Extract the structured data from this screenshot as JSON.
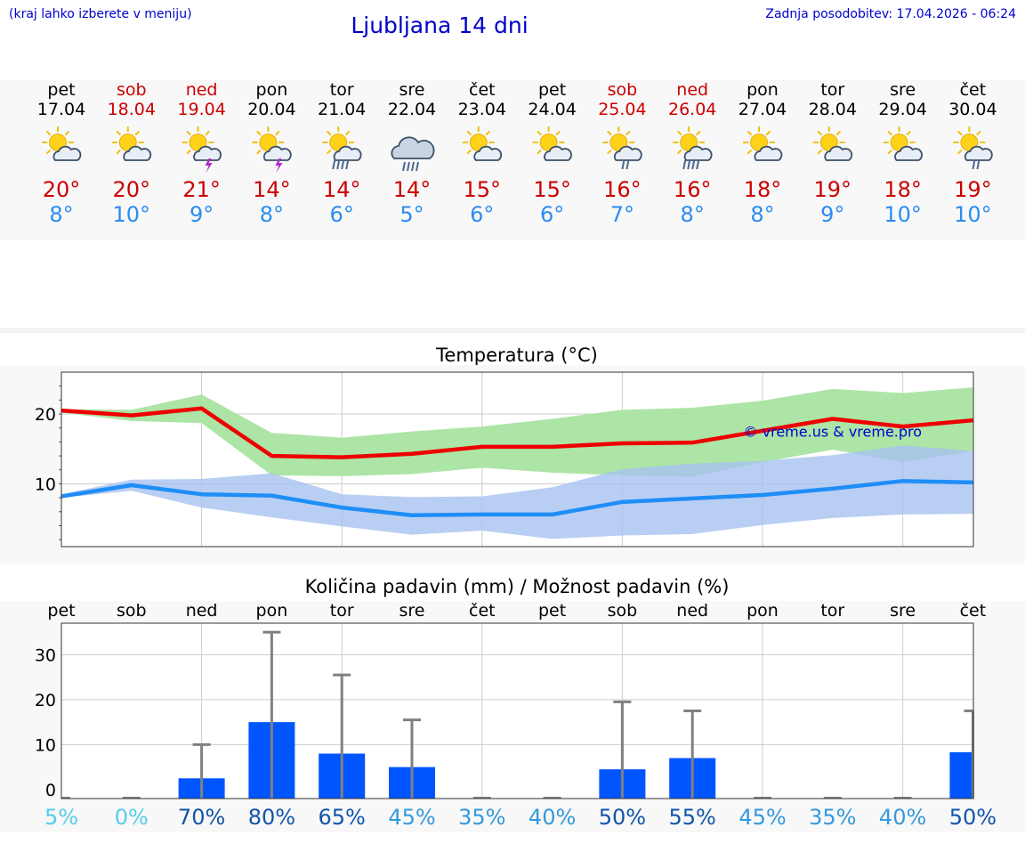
{
  "header": {
    "hint": "(kraj lahko izberete v meniju)",
    "title": "Ljubljana 14 dni",
    "updated": "Zadnja posodobitev: 17.04.2026 - 06:24"
  },
  "colors": {
    "weekday": "#000000",
    "weekend": "#cc0000",
    "tmax": "#cc0000",
    "tmin": "#2a8cf0",
    "tmax_line": "#ee0000",
    "tmin_line": "#1e8ef7",
    "tmax_band": "#a8e4a0",
    "tmin_band": "#a8c2f0",
    "precip_bar": "#0055ff",
    "error_bar": "#808080",
    "watermark": "#0000cc"
  },
  "days": [
    {
      "day": "pet",
      "date": "17.04",
      "weekend": false,
      "icon": "sun-cloud-icon",
      "tmax": "20°",
      "tmin": "8°"
    },
    {
      "day": "sob",
      "date": "18.04",
      "weekend": true,
      "icon": "sun-cloud-icon",
      "tmax": "20°",
      "tmin": "10°"
    },
    {
      "day": "ned",
      "date": "19.04",
      "weekend": true,
      "icon": "sun-cloud-thunder-icon",
      "tmax": "21°",
      "tmin": "9°"
    },
    {
      "day": "pon",
      "date": "20.04",
      "weekend": false,
      "icon": "sun-cloud-thunder-icon",
      "tmax": "14°",
      "tmin": "8°"
    },
    {
      "day": "tor",
      "date": "21.04",
      "weekend": false,
      "icon": "sun-cloud-heavy-rain-icon",
      "tmax": "14°",
      "tmin": "6°"
    },
    {
      "day": "sre",
      "date": "22.04",
      "weekend": false,
      "icon": "cloud-rain-icon",
      "tmax": "14°",
      "tmin": "5°"
    },
    {
      "day": "čet",
      "date": "23.04",
      "weekend": false,
      "icon": "sun-cloud-icon",
      "tmax": "15°",
      "tmin": "6°"
    },
    {
      "day": "pet",
      "date": "24.04",
      "weekend": false,
      "icon": "sun-cloud-icon",
      "tmax": "15°",
      "tmin": "6°"
    },
    {
      "day": "sob",
      "date": "25.04",
      "weekend": true,
      "icon": "sun-cloud-rain-icon",
      "tmax": "16°",
      "tmin": "7°"
    },
    {
      "day": "ned",
      "date": "26.04",
      "weekend": true,
      "icon": "sun-cloud-heavy-rain-icon",
      "tmax": "16°",
      "tmin": "8°"
    },
    {
      "day": "pon",
      "date": "27.04",
      "weekend": false,
      "icon": "sun-cloud-icon",
      "tmax": "18°",
      "tmin": "8°"
    },
    {
      "day": "tor",
      "date": "28.04",
      "weekend": false,
      "icon": "sun-cloud-icon",
      "tmax": "19°",
      "tmin": "9°"
    },
    {
      "day": "sre",
      "date": "29.04",
      "weekend": false,
      "icon": "sun-cloud-icon",
      "tmax": "18°",
      "tmin": "10°"
    },
    {
      "day": "čet",
      "date": "30.04",
      "weekend": false,
      "icon": "sun-cloud-rain-icon",
      "tmax": "19°",
      "tmin": "10°"
    }
  ],
  "chart_data": [
    {
      "type": "line",
      "title": "Temperatura (°C)",
      "watermark": "© vreme.us & vreme.pro",
      "categories": [
        "17.04",
        "18.04",
        "19.04",
        "20.04",
        "21.04",
        "22.04",
        "23.04",
        "24.04",
        "25.04",
        "26.04",
        "27.04",
        "28.04",
        "29.04",
        "30.04"
      ],
      "ylim": [
        1,
        26
      ],
      "yticks": [
        10,
        20
      ],
      "series": [
        {
          "name": "tmax",
          "values": [
            20.5,
            19.8,
            20.8,
            14.0,
            13.8,
            14.3,
            15.3,
            15.3,
            15.8,
            15.9,
            17.6,
            19.3,
            18.2,
            19.1
          ],
          "band_low": [
            20.2,
            19.0,
            18.7,
            11.2,
            11.1,
            11.4,
            12.3,
            11.6,
            11.2,
            11.0,
            13.1,
            14.9,
            13.1,
            14.7
          ],
          "band_high": [
            20.7,
            20.6,
            22.8,
            17.3,
            16.6,
            17.5,
            18.2,
            19.3,
            20.6,
            20.9,
            21.9,
            23.6,
            23.0,
            23.8
          ]
        },
        {
          "name": "tmin",
          "values": [
            8.2,
            9.8,
            8.5,
            8.3,
            6.6,
            5.5,
            5.6,
            5.6,
            7.4,
            7.9,
            8.4,
            9.3,
            10.4,
            10.2
          ],
          "band_low": [
            8.0,
            9.0,
            6.6,
            5.2,
            3.9,
            2.7,
            3.3,
            2.1,
            2.6,
            2.8,
            4.1,
            5.1,
            5.6,
            5.7
          ],
          "band_high": [
            8.5,
            10.6,
            10.7,
            11.5,
            8.5,
            8.1,
            8.2,
            9.5,
            12.1,
            12.9,
            13.3,
            14.1,
            15.5,
            14.7
          ]
        }
      ]
    },
    {
      "type": "bar",
      "title": "Količina padavin (mm) / Možnost padavin (%)",
      "categories": [
        "pet",
        "sob",
        "ned",
        "pon",
        "tor",
        "sre",
        "čet",
        "pet",
        "sob",
        "ned",
        "pon",
        "tor",
        "sre",
        "čet"
      ],
      "ylim": [
        -2,
        37
      ],
      "yticks": [
        0,
        10,
        20,
        30
      ],
      "values": [
        0,
        0,
        2.5,
        15,
        8,
        5,
        0,
        0,
        4.5,
        7,
        0,
        0,
        0,
        8.3
      ],
      "error_high": [
        0,
        0,
        10,
        35,
        25.5,
        15.5,
        0,
        0,
        19.5,
        17.5,
        0,
        0,
        0,
        17.5
      ],
      "probabilities": [
        "5%",
        "0%",
        "70%",
        "80%",
        "65%",
        "45%",
        "35%",
        "40%",
        "50%",
        "55%",
        "45%",
        "35%",
        "40%",
        "50%"
      ],
      "probability_colors": [
        "#55ccee",
        "#55ccee",
        "#1155aa",
        "#1155aa",
        "#1155aa",
        "#3399dd",
        "#3399dd",
        "#3399dd",
        "#1155aa",
        "#1155aa",
        "#3399dd",
        "#3399dd",
        "#3399dd",
        "#1155aa"
      ]
    }
  ]
}
